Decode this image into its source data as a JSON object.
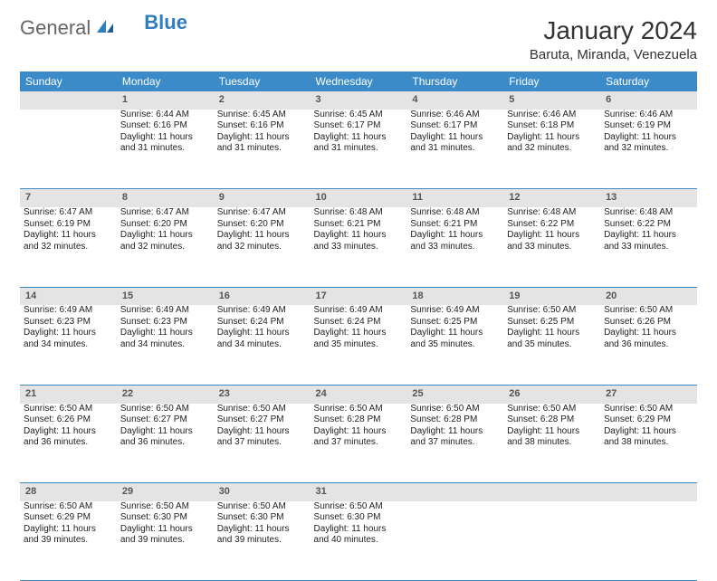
{
  "brand": {
    "general": "General",
    "blue": "Blue"
  },
  "title": "January 2024",
  "location": "Baruta, Miranda, Venezuela",
  "colors": {
    "header_bg": "#3b8bc9",
    "header_text": "#ffffff",
    "daynum_bg": "#e4e4e4",
    "border": "#3b8bc9",
    "page_bg": "#ffffff",
    "logo_blue": "#2f7ec0",
    "logo_gray": "#666666"
  },
  "weekdays": [
    "Sunday",
    "Monday",
    "Tuesday",
    "Wednesday",
    "Thursday",
    "Friday",
    "Saturday"
  ],
  "weeks": [
    {
      "nums": [
        "",
        "1",
        "2",
        "3",
        "4",
        "5",
        "6"
      ],
      "cells": [
        null,
        {
          "sr": "Sunrise: 6:44 AM",
          "ss": "Sunset: 6:16 PM",
          "d1": "Daylight: 11 hours",
          "d2": "and 31 minutes."
        },
        {
          "sr": "Sunrise: 6:45 AM",
          "ss": "Sunset: 6:16 PM",
          "d1": "Daylight: 11 hours",
          "d2": "and 31 minutes."
        },
        {
          "sr": "Sunrise: 6:45 AM",
          "ss": "Sunset: 6:17 PM",
          "d1": "Daylight: 11 hours",
          "d2": "and 31 minutes."
        },
        {
          "sr": "Sunrise: 6:46 AM",
          "ss": "Sunset: 6:17 PM",
          "d1": "Daylight: 11 hours",
          "d2": "and 31 minutes."
        },
        {
          "sr": "Sunrise: 6:46 AM",
          "ss": "Sunset: 6:18 PM",
          "d1": "Daylight: 11 hours",
          "d2": "and 32 minutes."
        },
        {
          "sr": "Sunrise: 6:46 AM",
          "ss": "Sunset: 6:19 PM",
          "d1": "Daylight: 11 hours",
          "d2": "and 32 minutes."
        }
      ]
    },
    {
      "nums": [
        "7",
        "8",
        "9",
        "10",
        "11",
        "12",
        "13"
      ],
      "cells": [
        {
          "sr": "Sunrise: 6:47 AM",
          "ss": "Sunset: 6:19 PM",
          "d1": "Daylight: 11 hours",
          "d2": "and 32 minutes."
        },
        {
          "sr": "Sunrise: 6:47 AM",
          "ss": "Sunset: 6:20 PM",
          "d1": "Daylight: 11 hours",
          "d2": "and 32 minutes."
        },
        {
          "sr": "Sunrise: 6:47 AM",
          "ss": "Sunset: 6:20 PM",
          "d1": "Daylight: 11 hours",
          "d2": "and 32 minutes."
        },
        {
          "sr": "Sunrise: 6:48 AM",
          "ss": "Sunset: 6:21 PM",
          "d1": "Daylight: 11 hours",
          "d2": "and 33 minutes."
        },
        {
          "sr": "Sunrise: 6:48 AM",
          "ss": "Sunset: 6:21 PM",
          "d1": "Daylight: 11 hours",
          "d2": "and 33 minutes."
        },
        {
          "sr": "Sunrise: 6:48 AM",
          "ss": "Sunset: 6:22 PM",
          "d1": "Daylight: 11 hours",
          "d2": "and 33 minutes."
        },
        {
          "sr": "Sunrise: 6:48 AM",
          "ss": "Sunset: 6:22 PM",
          "d1": "Daylight: 11 hours",
          "d2": "and 33 minutes."
        }
      ]
    },
    {
      "nums": [
        "14",
        "15",
        "16",
        "17",
        "18",
        "19",
        "20"
      ],
      "cells": [
        {
          "sr": "Sunrise: 6:49 AM",
          "ss": "Sunset: 6:23 PM",
          "d1": "Daylight: 11 hours",
          "d2": "and 34 minutes."
        },
        {
          "sr": "Sunrise: 6:49 AM",
          "ss": "Sunset: 6:23 PM",
          "d1": "Daylight: 11 hours",
          "d2": "and 34 minutes."
        },
        {
          "sr": "Sunrise: 6:49 AM",
          "ss": "Sunset: 6:24 PM",
          "d1": "Daylight: 11 hours",
          "d2": "and 34 minutes."
        },
        {
          "sr": "Sunrise: 6:49 AM",
          "ss": "Sunset: 6:24 PM",
          "d1": "Daylight: 11 hours",
          "d2": "and 35 minutes."
        },
        {
          "sr": "Sunrise: 6:49 AM",
          "ss": "Sunset: 6:25 PM",
          "d1": "Daylight: 11 hours",
          "d2": "and 35 minutes."
        },
        {
          "sr": "Sunrise: 6:50 AM",
          "ss": "Sunset: 6:25 PM",
          "d1": "Daylight: 11 hours",
          "d2": "and 35 minutes."
        },
        {
          "sr": "Sunrise: 6:50 AM",
          "ss": "Sunset: 6:26 PM",
          "d1": "Daylight: 11 hours",
          "d2": "and 36 minutes."
        }
      ]
    },
    {
      "nums": [
        "21",
        "22",
        "23",
        "24",
        "25",
        "26",
        "27"
      ],
      "cells": [
        {
          "sr": "Sunrise: 6:50 AM",
          "ss": "Sunset: 6:26 PM",
          "d1": "Daylight: 11 hours",
          "d2": "and 36 minutes."
        },
        {
          "sr": "Sunrise: 6:50 AM",
          "ss": "Sunset: 6:27 PM",
          "d1": "Daylight: 11 hours",
          "d2": "and 36 minutes."
        },
        {
          "sr": "Sunrise: 6:50 AM",
          "ss": "Sunset: 6:27 PM",
          "d1": "Daylight: 11 hours",
          "d2": "and 37 minutes."
        },
        {
          "sr": "Sunrise: 6:50 AM",
          "ss": "Sunset: 6:28 PM",
          "d1": "Daylight: 11 hours",
          "d2": "and 37 minutes."
        },
        {
          "sr": "Sunrise: 6:50 AM",
          "ss": "Sunset: 6:28 PM",
          "d1": "Daylight: 11 hours",
          "d2": "and 37 minutes."
        },
        {
          "sr": "Sunrise: 6:50 AM",
          "ss": "Sunset: 6:28 PM",
          "d1": "Daylight: 11 hours",
          "d2": "and 38 minutes."
        },
        {
          "sr": "Sunrise: 6:50 AM",
          "ss": "Sunset: 6:29 PM",
          "d1": "Daylight: 11 hours",
          "d2": "and 38 minutes."
        }
      ]
    },
    {
      "nums": [
        "28",
        "29",
        "30",
        "31",
        "",
        "",
        ""
      ],
      "cells": [
        {
          "sr": "Sunrise: 6:50 AM",
          "ss": "Sunset: 6:29 PM",
          "d1": "Daylight: 11 hours",
          "d2": "and 39 minutes."
        },
        {
          "sr": "Sunrise: 6:50 AM",
          "ss": "Sunset: 6:30 PM",
          "d1": "Daylight: 11 hours",
          "d2": "and 39 minutes."
        },
        {
          "sr": "Sunrise: 6:50 AM",
          "ss": "Sunset: 6:30 PM",
          "d1": "Daylight: 11 hours",
          "d2": "and 39 minutes."
        },
        {
          "sr": "Sunrise: 6:50 AM",
          "ss": "Sunset: 6:30 PM",
          "d1": "Daylight: 11 hours",
          "d2": "and 40 minutes."
        },
        null,
        null,
        null
      ]
    }
  ]
}
